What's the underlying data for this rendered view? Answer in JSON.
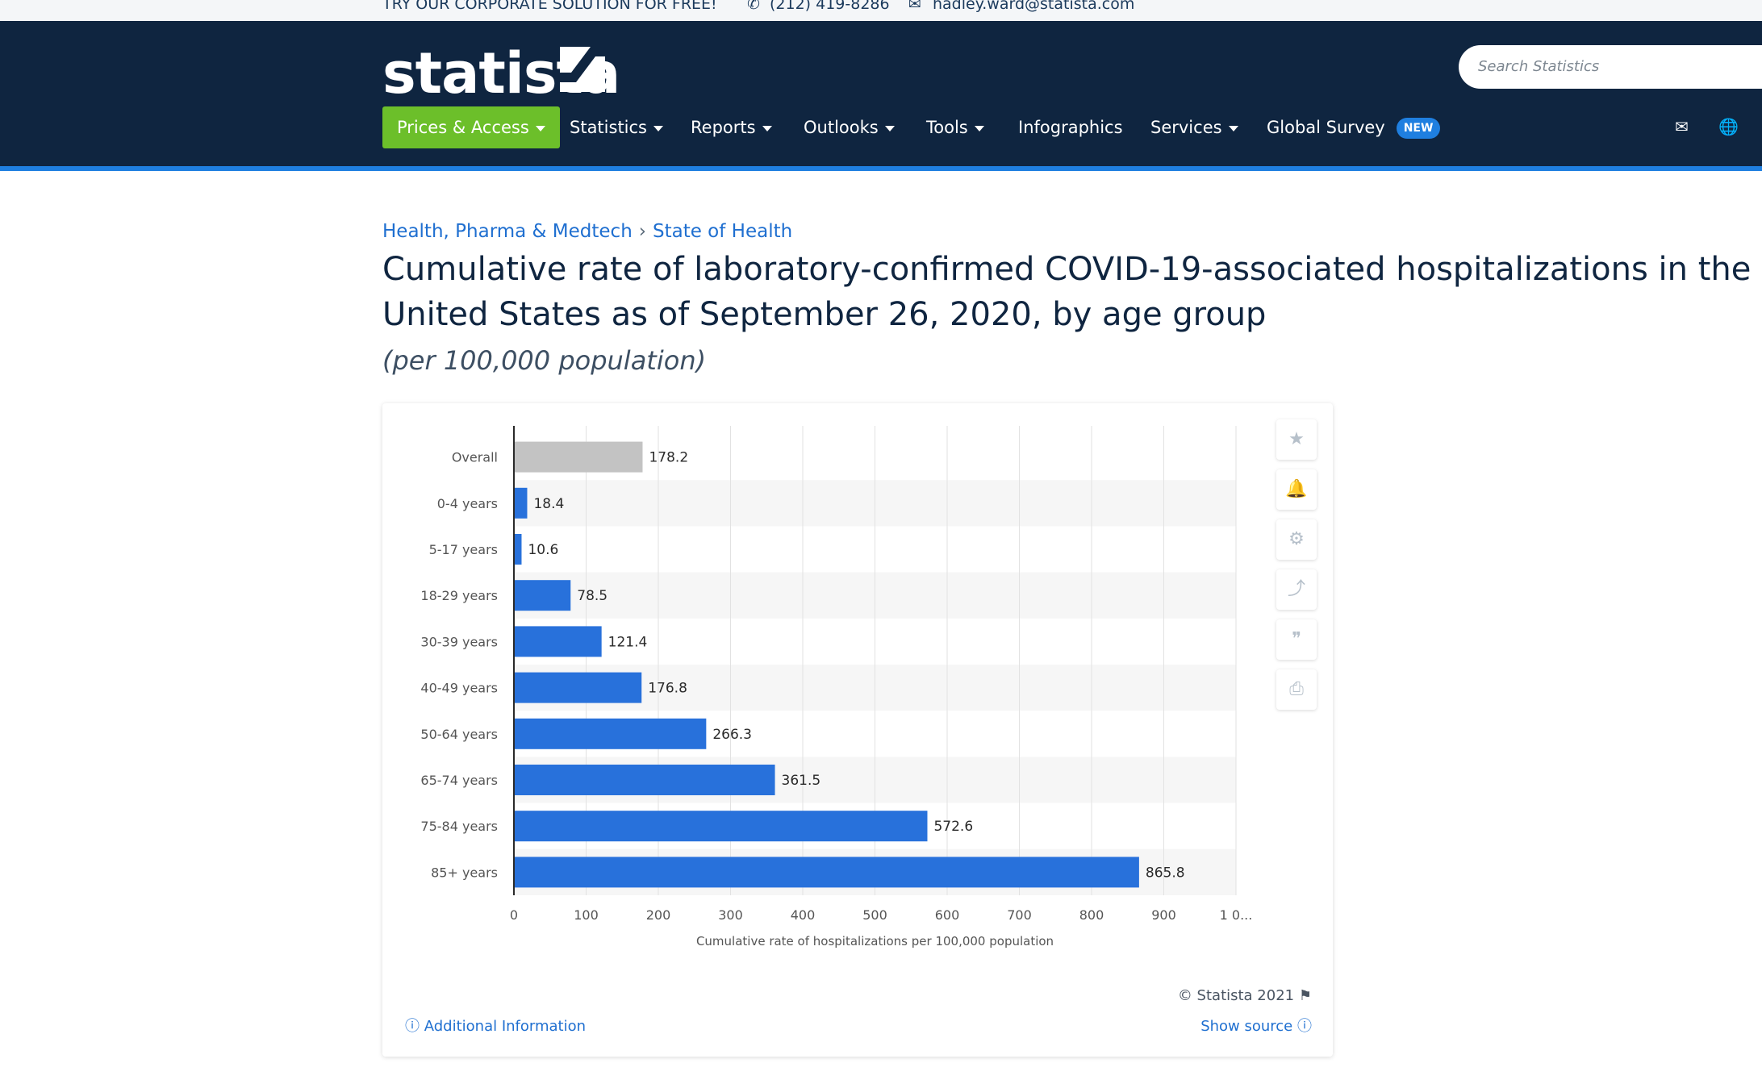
{
  "topbar": {
    "promo": "TRY OUR CORPORATE SOLUTION FOR FREE!",
    "phone": "(212) 419-8286",
    "email": "hadley.ward@statista.com"
  },
  "header": {
    "logo_text": "statista",
    "search_placeholder": "Search Statistics",
    "nav": [
      {
        "label": "Prices & Access",
        "dropdown": true
      },
      {
        "label": "Statistics",
        "dropdown": true
      },
      {
        "label": "Reports",
        "dropdown": true
      },
      {
        "label": "Outlooks",
        "dropdown": true
      },
      {
        "label": "Tools",
        "dropdown": true
      },
      {
        "label": "Infographics",
        "dropdown": false
      },
      {
        "label": "Services",
        "dropdown": true
      },
      {
        "label": "Global Survey",
        "dropdown": false
      }
    ],
    "new_badge": "NEW",
    "accent_color": "#6cbf2a",
    "bg_color": "#0f2540"
  },
  "breadcrumb": [
    "Health, Pharma & Medtech",
    "State of Health"
  ],
  "page": {
    "title": "Cumulative rate of laboratory-confirmed COVID-19-associated hospitalizations in the United States as of September 26, 2020, by age group",
    "subtitle": "(per 100,000 population)"
  },
  "chart_data": {
    "type": "bar",
    "orientation": "horizontal",
    "categories": [
      "Overall",
      "0-4 years",
      "5-17 years",
      "18-29 years",
      "30-39 years",
      "40-49 years",
      "50-64 years",
      "65-74 years",
      "75-84 years",
      "85+ years"
    ],
    "values": [
      178.2,
      18.4,
      10.6,
      78.5,
      121.4,
      176.8,
      266.3,
      361.5,
      572.6,
      865.8
    ],
    "value_labels": [
      "178.2",
      "18.4",
      "10.6",
      "78.5",
      "121.4",
      "176.8",
      "266.3",
      "361.5",
      "572.6",
      "865.8"
    ],
    "xlabel": "Cumulative rate of hospitalizations per 100,000 population",
    "x_ticks": [
      "0",
      "100",
      "200",
      "300",
      "400",
      "500",
      "600",
      "700",
      "800",
      "900",
      "1 0..."
    ],
    "xlim": [
      0,
      1000
    ],
    "grid": true,
    "bar_color": "#2871db",
    "highlight_color": "#c3c3c3",
    "highlight_category": "Overall"
  },
  "card": {
    "copyright": "© Statista 2021",
    "additional_info": "Additional Information",
    "show_source": "Show source"
  },
  "tools": [
    "star-icon",
    "bell-icon",
    "gear-icon",
    "share-icon",
    "quote-icon",
    "print-icon"
  ]
}
